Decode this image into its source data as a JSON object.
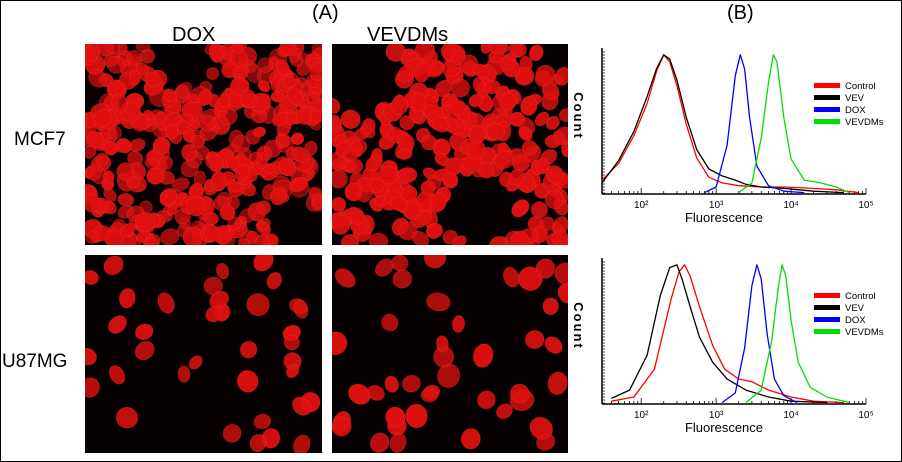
{
  "figure": {
    "panel_a": "(A)",
    "panel_b": "(B)",
    "columns": [
      "DOX",
      "VEVDMs"
    ],
    "rows": [
      "MCF7",
      "U87MG"
    ]
  },
  "colors": {
    "nuclei": "#e01010",
    "Control": "#ff0000",
    "VEV": "#000000",
    "DOX": "#0000ff",
    "VEVDMs": "#00e000"
  },
  "chart_data": [
    {
      "type": "line",
      "row": "MCF7",
      "xlabel": "Fluorescence",
      "ylabel": "Count",
      "x_scale": "log",
      "xlim": [
        30,
        100000
      ],
      "x_ticks": [
        {
          "value": 100,
          "label": "10²"
        },
        {
          "value": 1000,
          "label": "10³"
        },
        {
          "value": 10000,
          "label": "10⁴"
        },
        {
          "value": 100000,
          "label": "10⁵"
        }
      ],
      "legend_position": "right",
      "series": [
        {
          "name": "Control",
          "color": "#ff0000",
          "x": [
            30,
            50,
            80,
            120,
            160,
            200,
            240,
            300,
            400,
            550,
            800,
            1200,
            2000,
            4000,
            8000,
            20000,
            40000,
            80000
          ],
          "y": [
            0.1,
            0.22,
            0.42,
            0.65,
            0.88,
            1.0,
            0.95,
            0.78,
            0.5,
            0.26,
            0.12,
            0.08,
            0.06,
            0.05,
            0.05,
            0.04,
            0.03,
            0.01
          ]
        },
        {
          "name": "VEV",
          "color": "#000000",
          "x": [
            30,
            50,
            80,
            120,
            160,
            200,
            240,
            300,
            400,
            550,
            800,
            1200,
            1800,
            2500,
            4000,
            8000,
            20000,
            50000
          ],
          "y": [
            0.08,
            0.24,
            0.45,
            0.7,
            0.9,
            1.0,
            0.97,
            0.82,
            0.55,
            0.32,
            0.18,
            0.13,
            0.1,
            0.07,
            0.05,
            0.04,
            0.02,
            0.01
          ]
        },
        {
          "name": "DOX",
          "color": "#0000ff",
          "x": [
            700,
            1000,
            1400,
            1800,
            2100,
            2400,
            2800,
            3500,
            5000,
            8000,
            15000
          ],
          "y": [
            0.01,
            0.05,
            0.35,
            0.85,
            1.0,
            0.9,
            0.55,
            0.2,
            0.06,
            0.02,
            0.01
          ]
        },
        {
          "name": "VEVDMs",
          "color": "#00e000",
          "x": [
            2000,
            3000,
            4000,
            5000,
            5800,
            6500,
            8000,
            10000,
            15000,
            25000,
            40000,
            60000
          ],
          "y": [
            0.01,
            0.08,
            0.4,
            0.8,
            1.0,
            0.95,
            0.55,
            0.25,
            0.1,
            0.08,
            0.05,
            0.01
          ]
        }
      ]
    },
    {
      "type": "line",
      "row": "U87MG",
      "xlabel": "Fluorescence",
      "ylabel": "Count",
      "x_scale": "log",
      "xlim": [
        30,
        100000
      ],
      "x_ticks": [
        {
          "value": 100,
          "label": "10²"
        },
        {
          "value": 1000,
          "label": "10³"
        },
        {
          "value": 10000,
          "label": "10⁴"
        },
        {
          "value": 100000,
          "label": "10⁵"
        }
      ],
      "legend_position": "right",
      "series": [
        {
          "name": "Control",
          "color": "#ff0000",
          "x": [
            40,
            80,
            150,
            250,
            320,
            380,
            450,
            600,
            900,
            1300,
            2000,
            3000,
            5000,
            10000,
            20000,
            50000
          ],
          "y": [
            0.02,
            0.05,
            0.25,
            0.75,
            0.95,
            1.0,
            0.92,
            0.7,
            0.42,
            0.25,
            0.18,
            0.16,
            0.1,
            0.05,
            0.02,
            0.01
          ]
        },
        {
          "name": "VEV",
          "color": "#000000",
          "x": [
            40,
            70,
            120,
            180,
            240,
            300,
            350,
            450,
            600,
            900,
            1400,
            2500,
            5000,
            10000,
            30000
          ],
          "y": [
            0.04,
            0.1,
            0.35,
            0.78,
            0.98,
            1.0,
            0.9,
            0.7,
            0.48,
            0.3,
            0.18,
            0.1,
            0.05,
            0.02,
            0.01
          ]
        },
        {
          "name": "DOX",
          "color": "#0000ff",
          "x": [
            1200,
            1800,
            2400,
            3000,
            3500,
            4000,
            4800,
            6000,
            8000,
            12000
          ],
          "y": [
            0.01,
            0.08,
            0.4,
            0.85,
            1.0,
            0.9,
            0.5,
            0.18,
            0.06,
            0.01
          ]
        },
        {
          "name": "VEVDMs",
          "color": "#00e000",
          "x": [
            2500,
            4000,
            5500,
            6800,
            7600,
            8500,
            10000,
            12500,
            18000,
            30000,
            60000
          ],
          "y": [
            0.01,
            0.1,
            0.45,
            0.85,
            1.0,
            0.92,
            0.6,
            0.3,
            0.12,
            0.05,
            0.01
          ]
        }
      ]
    }
  ]
}
